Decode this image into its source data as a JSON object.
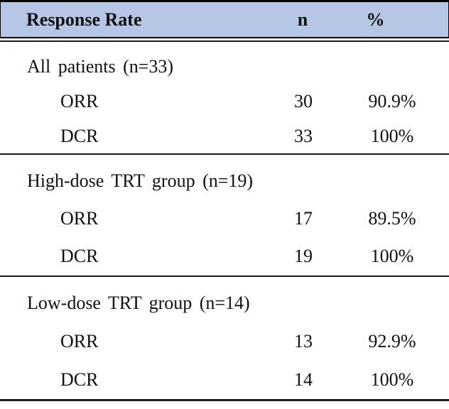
{
  "table": {
    "header": {
      "col1": "Response Rate",
      "col2": "n",
      "col3": "%"
    },
    "sections": [
      {
        "title": "All patients (n=33)",
        "rows": [
          {
            "label": "ORR",
            "n": "30",
            "pct": "90.9%"
          },
          {
            "label": "DCR",
            "n": "33",
            "pct": "100%"
          }
        ]
      },
      {
        "title": "High-dose TRT group (n=19)",
        "rows": [
          {
            "label": "ORR",
            "n": "17",
            "pct": "89.5%"
          },
          {
            "label": "DCR",
            "n": "19",
            "pct": "100%"
          }
        ]
      },
      {
        "title": "Low-dose TRT group (n=14)",
        "rows": [
          {
            "label": "ORR",
            "n": "13",
            "pct": "92.9%"
          },
          {
            "label": "DCR",
            "n": "14",
            "pct": "100%"
          }
        ]
      }
    ],
    "colors": {
      "header_bg": "#b5c7e4",
      "border": "#000000"
    }
  }
}
